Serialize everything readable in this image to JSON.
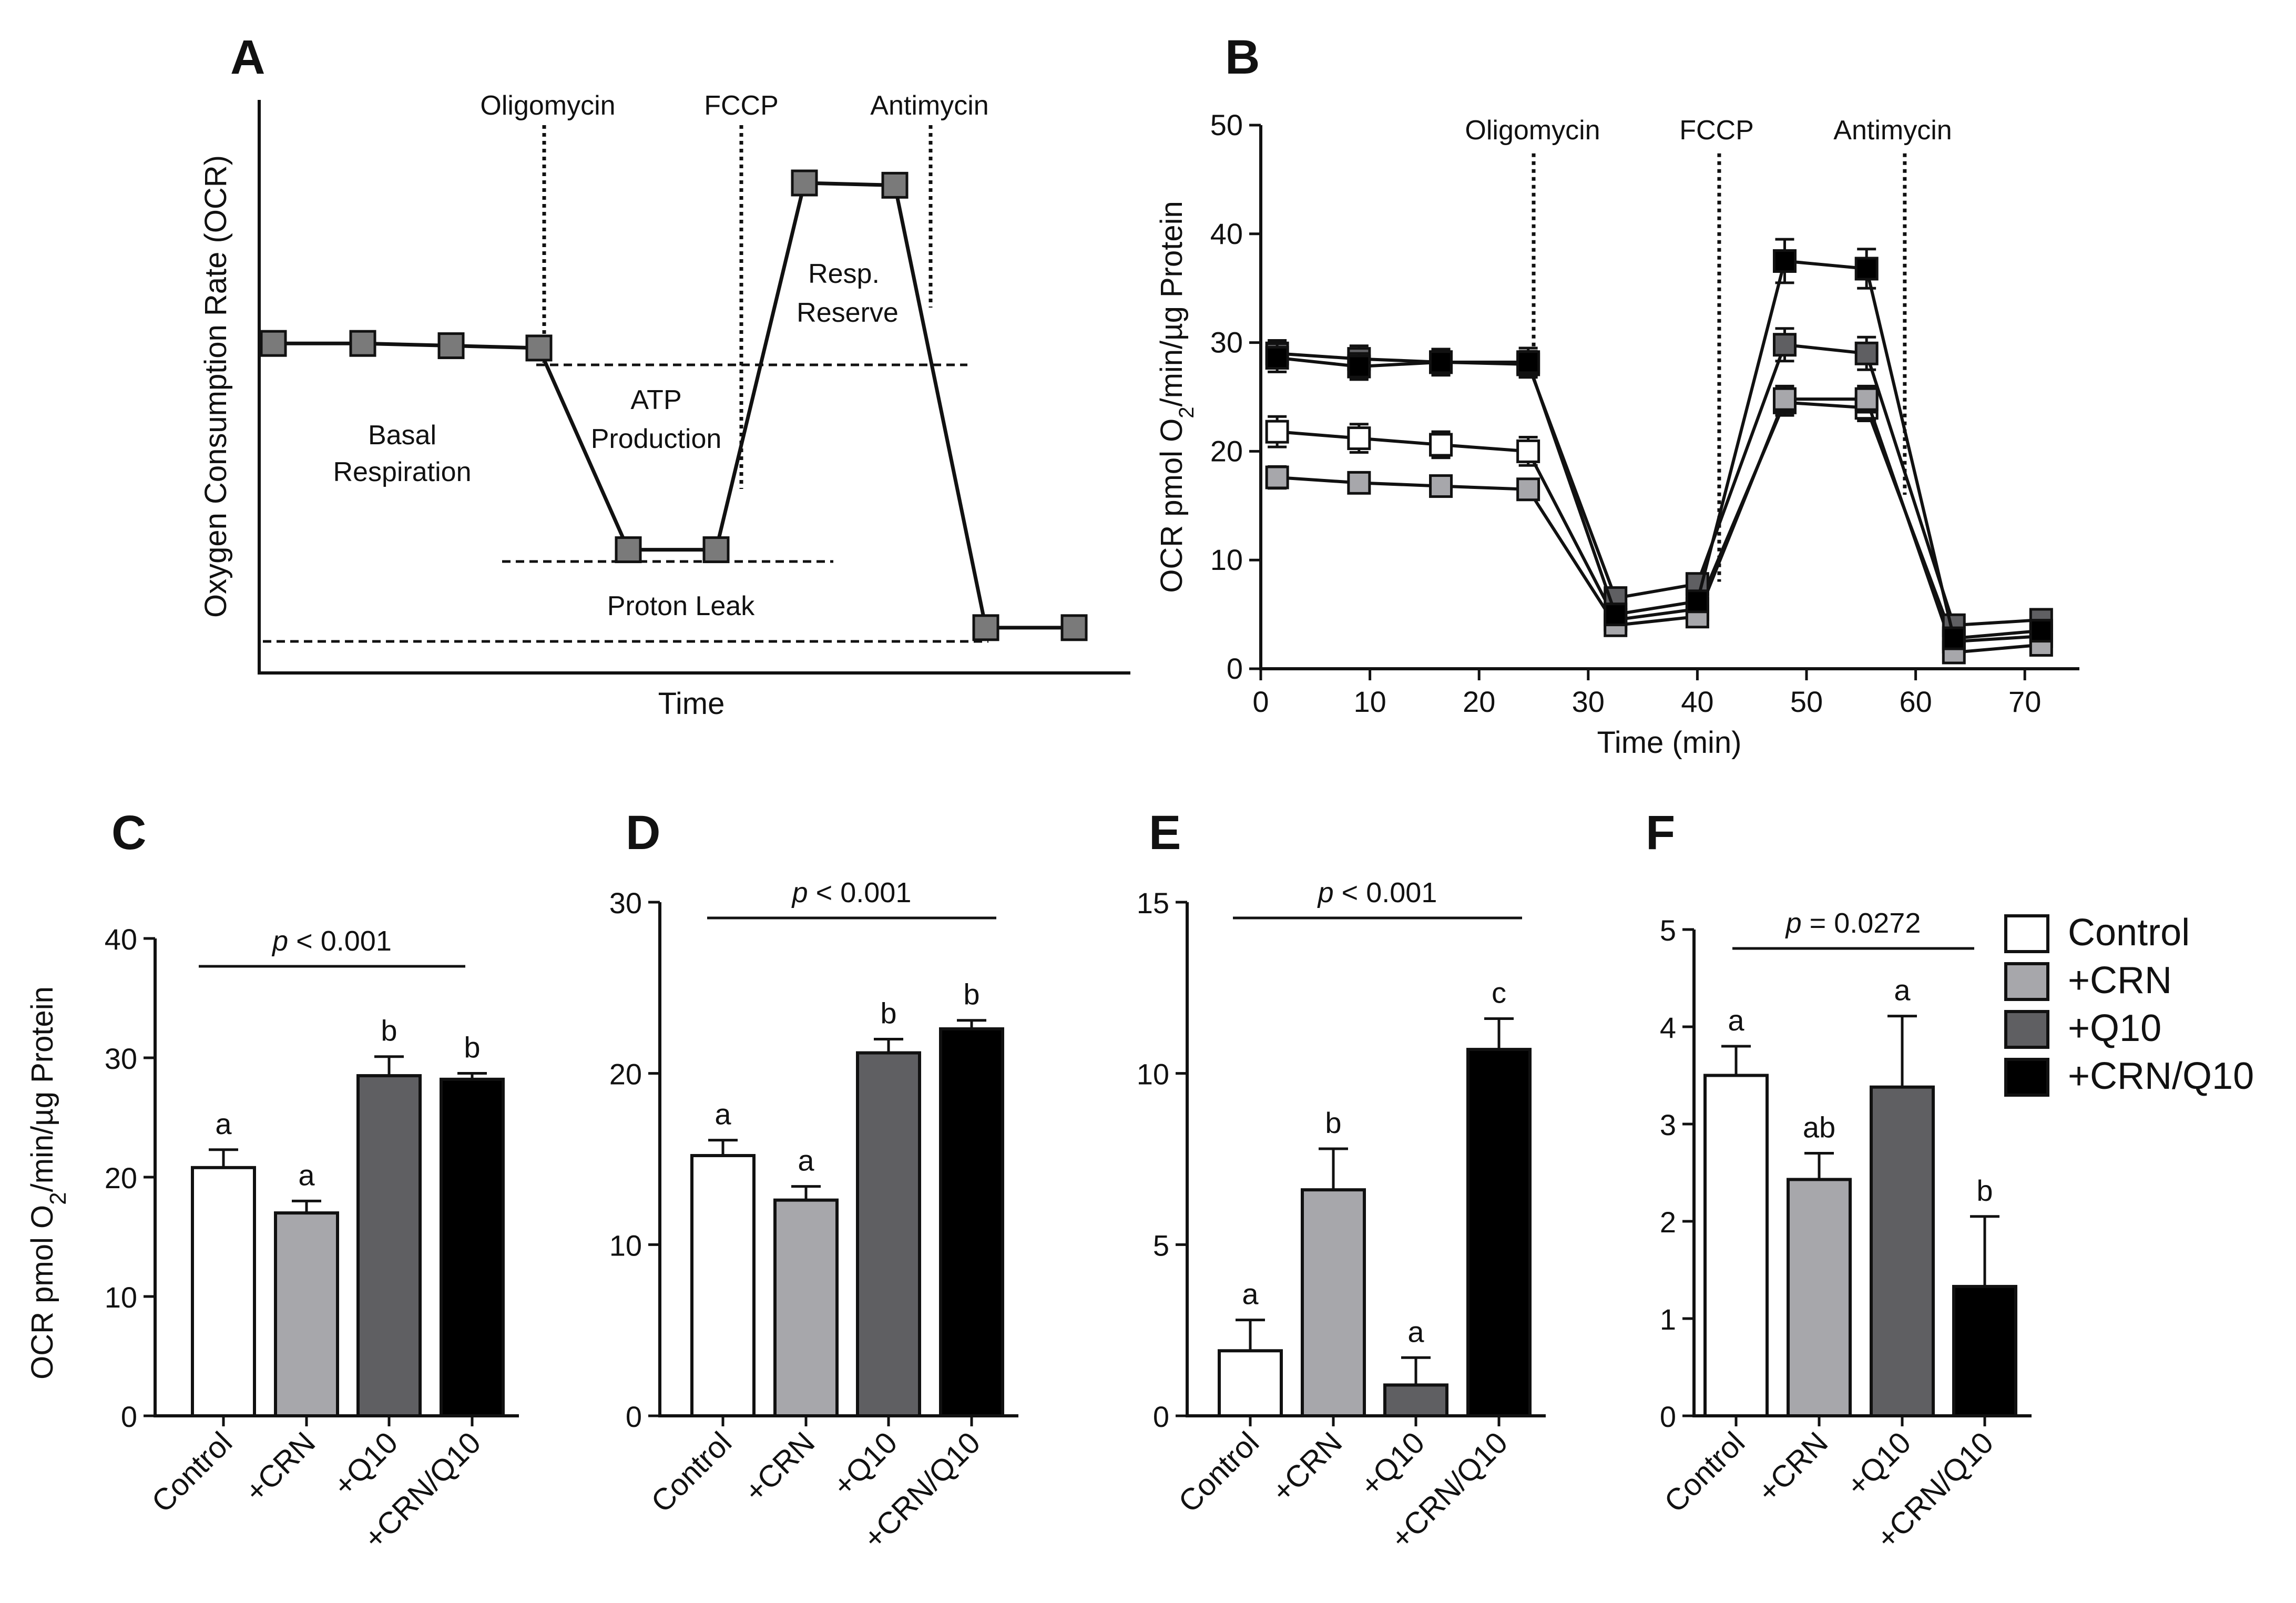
{
  "colors": {
    "control": "#ffffff",
    "crn": "#a7a7ab",
    "q10": "#5f5f62",
    "crn_q10": "#000000",
    "schematic_marker": "#7a7a7a"
  },
  "chart_data": [
    {
      "panel": "A",
      "type": "line",
      "ylabel": "Oxygen Consumption Rate (OCR)",
      "xlabel": "Time",
      "injections": [
        "Oligomycin",
        "FCCP",
        "Antimycin"
      ],
      "annotations": [
        "Basal",
        "Respiration",
        "ATP",
        "Production",
        "Proton Leak",
        "Resp.",
        "Reserve"
      ],
      "x": [
        1,
        2,
        3,
        4,
        5,
        6,
        7,
        8,
        9,
        10
      ],
      "values": [
        0.65,
        0.65,
        0.645,
        0.64,
        0.2,
        0.2,
        1.0,
        0.995,
        0.03,
        0.03
      ]
    },
    {
      "panel": "B",
      "type": "line",
      "ylabel": "OCR pmol O2/min/µg Protein",
      "xlabel": "Time (min)",
      "xlim": [
        0,
        75
      ],
      "ylim": [
        0,
        50
      ],
      "xticks": [
        0,
        10,
        20,
        30,
        40,
        50,
        60,
        70
      ],
      "yticks": [
        0,
        10,
        20,
        30,
        40,
        50
      ],
      "injections": [
        {
          "label": "Oligomycin",
          "x": 25
        },
        {
          "label": "FCCP",
          "x": 42
        },
        {
          "label": "Antimycin",
          "x": 59
        }
      ],
      "x": [
        1.5,
        9,
        16.5,
        24.5,
        32.5,
        40,
        48,
        55.5,
        63.5,
        71.5
      ],
      "series": [
        {
          "group": "control",
          "values": [
            21.8,
            21.2,
            20.6,
            20.0,
            4.5,
            5.5,
            24.5,
            24.0,
            2.5,
            3.0
          ],
          "err": [
            1.4,
            1.3,
            1.2,
            1.3,
            0.8,
            0.8,
            1.2,
            1.2,
            0.6,
            0.6
          ]
        },
        {
          "group": "crn",
          "values": [
            17.6,
            17.1,
            16.8,
            16.5,
            4.0,
            4.8,
            24.8,
            24.8,
            1.5,
            2.2
          ],
          "err": [
            1.0,
            0.9,
            0.9,
            0.9,
            0.6,
            0.6,
            1.2,
            1.2,
            0.5,
            0.5
          ]
        },
        {
          "group": "q10",
          "values": [
            29.0,
            28.5,
            28.2,
            28.0,
            6.5,
            7.8,
            29.8,
            29.0,
            4.0,
            4.5
          ],
          "err": [
            1.2,
            1.2,
            1.2,
            1.2,
            0.8,
            0.8,
            1.5,
            1.5,
            0.6,
            0.6
          ]
        },
        {
          "group": "crn_q10",
          "values": [
            28.6,
            27.8,
            28.2,
            28.2,
            5.0,
            6.2,
            37.5,
            36.8,
            2.8,
            3.5
          ],
          "err": [
            1.3,
            1.2,
            1.2,
            1.3,
            0.8,
            0.8,
            2.0,
            1.8,
            0.6,
            0.6
          ]
        }
      ]
    },
    {
      "panel": "C",
      "type": "bar",
      "ylabel": "OCR pmol O2/min/µg Protein",
      "ylim": [
        0,
        40
      ],
      "yticks": [
        0,
        10,
        20,
        30,
        40
      ],
      "categories": [
        "Control",
        "+CRN",
        "+Q10",
        "+CRN/Q10"
      ],
      "values": [
        20.8,
        17.0,
        28.5,
        28.2
      ],
      "err": [
        1.5,
        1.0,
        1.6,
        0.5
      ],
      "letters": [
        "a",
        "a",
        "b",
        "b"
      ],
      "p_label": "p",
      "p_value": "< 0.001"
    },
    {
      "panel": "D",
      "type": "bar",
      "ylim": [
        0,
        30
      ],
      "yticks": [
        0,
        10,
        20,
        30
      ],
      "categories": [
        "Control",
        "+CRN",
        "+Q10",
        "+CRN/Q10"
      ],
      "values": [
        15.2,
        12.6,
        21.2,
        22.6
      ],
      "err": [
        0.9,
        0.8,
        0.8,
        0.5
      ],
      "letters": [
        "a",
        "a",
        "b",
        "b"
      ],
      "p_label": "p",
      "p_value": "< 0.001"
    },
    {
      "panel": "E",
      "type": "bar",
      "ylim": [
        0,
        15
      ],
      "yticks": [
        0,
        5,
        10,
        15
      ],
      "categories": [
        "Control",
        "+CRN",
        "+Q10",
        "+CRN/Q10"
      ],
      "values": [
        1.9,
        6.6,
        0.9,
        10.7
      ],
      "err": [
        0.9,
        1.2,
        0.8,
        0.9
      ],
      "letters": [
        "a",
        "b",
        "a",
        "c"
      ],
      "p_label": "p",
      "p_value": "< 0.001"
    },
    {
      "panel": "F",
      "type": "bar",
      "ylim": [
        0,
        5
      ],
      "yticks": [
        0,
        1,
        2,
        3,
        4,
        5
      ],
      "categories": [
        "Control",
        "+CRN",
        "+Q10",
        "+CRN/Q10"
      ],
      "values": [
        3.5,
        2.43,
        3.38,
        1.33
      ],
      "err": [
        0.3,
        0.27,
        0.73,
        0.72
      ],
      "letters": [
        "a",
        "ab",
        "a",
        "b"
      ],
      "p_label": "p",
      "p_value": "= 0.0272",
      "legend": [
        "Control",
        "+CRN",
        "+Q10",
        "+CRN/Q10"
      ],
      "legend_position": "top-right"
    }
  ]
}
